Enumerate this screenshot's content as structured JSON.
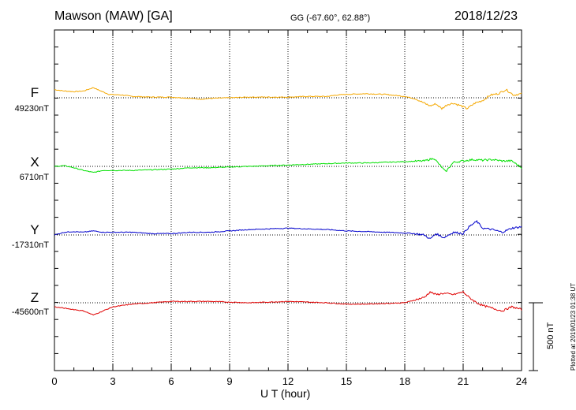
{
  "header": {
    "station": "Mawson (MAW)  [GA]",
    "coords": "GG (-67.60°,  62.88°)",
    "date": "2018/12/23"
  },
  "footer": {
    "plotted": "Plotted at 2019/01/23 01:38 UT"
  },
  "scale_bar": {
    "label": "500 nT",
    "value_nT": 500
  },
  "chart_data": {
    "type": "line",
    "title": "Mawson (MAW)  [GA]",
    "xlabel": "U T (hour)",
    "xlim": [
      0,
      24
    ],
    "x_ticks": [
      0,
      3,
      6,
      9,
      12,
      15,
      18,
      21,
      24
    ],
    "x_tick_labels": [
      "0",
      "3",
      "6",
      "9",
      "12",
      "15",
      "18",
      "21",
      "24"
    ],
    "grid": "vertical dotted every 3 hours",
    "units": "nT",
    "series": [
      {
        "name": "F",
        "baseline_label": "49230nT",
        "baseline_nT": 49230,
        "color": "#f5a800",
        "x": [
          0,
          0.5,
          1,
          1.5,
          2,
          2.3,
          2.8,
          3.5,
          4,
          5,
          6,
          7,
          7.5,
          8,
          9,
          10,
          11,
          12,
          13,
          14,
          14.5,
          15,
          16,
          17,
          18,
          18.6,
          19,
          19.3,
          19.6,
          19.9,
          20.2,
          20.5,
          20.9,
          21.2,
          21.6,
          22,
          22.4,
          22.8,
          23.2,
          23.6,
          24
        ],
        "values": [
          60,
          50,
          45,
          50,
          75,
          55,
          25,
          20,
          10,
          5,
          5,
          -5,
          -10,
          -5,
          0,
          5,
          5,
          5,
          10,
          10,
          20,
          25,
          30,
          25,
          10,
          -10,
          -40,
          -60,
          -45,
          -80,
          -50,
          -40,
          -60,
          -80,
          -40,
          -20,
          20,
          30,
          60,
          20,
          30
        ]
      },
      {
        "name": "X",
        "baseline_label": "6710nT",
        "baseline_nT": 6710,
        "color": "#00e000",
        "x": [
          0,
          0.5,
          1,
          1.5,
          2,
          2.5,
          3,
          4,
          5,
          6,
          7,
          8,
          9,
          10,
          11,
          12,
          13,
          14,
          15,
          16,
          17,
          18,
          19,
          19.5,
          19.8,
          20.1,
          20.5,
          21,
          21.5,
          22,
          22.5,
          23,
          23.5,
          24
        ],
        "values": [
          0,
          5,
          -10,
          -30,
          -45,
          -30,
          -30,
          -30,
          -25,
          -20,
          -10,
          -10,
          -5,
          0,
          5,
          10,
          15,
          20,
          25,
          25,
          30,
          35,
          40,
          60,
          10,
          -40,
          30,
          40,
          50,
          45,
          50,
          40,
          40,
          -10
        ]
      },
      {
        "name": "Y",
        "baseline_label": "-17310nT",
        "baseline_nT": -17310,
        "color": "#0000cc",
        "x": [
          0,
          0.5,
          1,
          1.5,
          2,
          2.5,
          3,
          4,
          5,
          6,
          7,
          8,
          9,
          10,
          11,
          12,
          13,
          14,
          15,
          16,
          17,
          18,
          18.5,
          19,
          19.3,
          19.6,
          20,
          20.5,
          21,
          21.3,
          21.7,
          22,
          22.5,
          23,
          23.5,
          24
        ],
        "values": [
          0,
          20,
          25,
          20,
          30,
          20,
          20,
          20,
          10,
          10,
          20,
          20,
          30,
          40,
          45,
          50,
          45,
          40,
          30,
          25,
          20,
          15,
          10,
          0,
          -30,
          10,
          -20,
          20,
          10,
          60,
          100,
          50,
          40,
          20,
          50,
          60
        ]
      },
      {
        "name": "Z",
        "baseline_label": "-45600nT",
        "baseline_nT": -45600,
        "color": "#e00000",
        "x": [
          0,
          0.5,
          1,
          1.5,
          2,
          2.5,
          3,
          4,
          5,
          6,
          7,
          8,
          9,
          10,
          11,
          12,
          13,
          14,
          15,
          16,
          17,
          18,
          18.5,
          19,
          19.3,
          19.6,
          20,
          20.5,
          21,
          21.3,
          21.7,
          22,
          22.5,
          23,
          23.5,
          24
        ],
        "values": [
          -30,
          -40,
          -50,
          -60,
          -90,
          -60,
          -30,
          -10,
          0,
          10,
          10,
          10,
          5,
          0,
          5,
          10,
          5,
          0,
          -10,
          -10,
          -5,
          0,
          20,
          40,
          80,
          60,
          70,
          60,
          80,
          40,
          0,
          -20,
          -40,
          -60,
          -30,
          -50
        ]
      }
    ]
  }
}
